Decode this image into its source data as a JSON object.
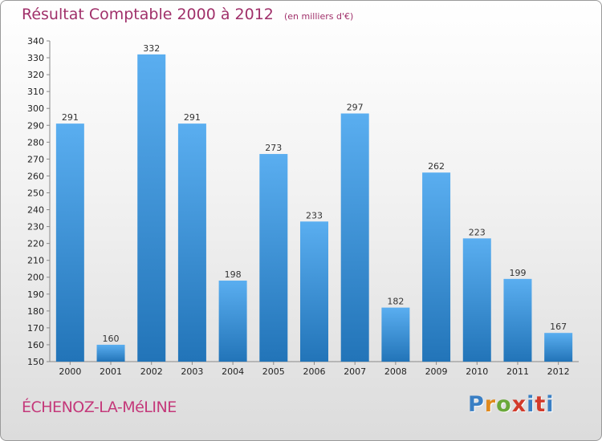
{
  "title": "Résultat Comptable 2000 à 2012",
  "subtitle": "(en milliers d'€)",
  "commune": "ÉCHENOZ-LA-MéLINE",
  "logo": {
    "letters": [
      "P",
      "r",
      "o",
      "x",
      "i",
      "t",
      "i"
    ],
    "colors": [
      "#3a7fc4",
      "#e08a1e",
      "#6aa83a",
      "#d23a2a",
      "#3a7fc4",
      "#d23a2a",
      "#3a7fc4"
    ]
  },
  "colors": {
    "bar_top": "#5aaef0",
    "bar_bottom": "#2274b8",
    "axis": "#888888",
    "grid": "#d0d0d0"
  },
  "chart_data": {
    "type": "bar",
    "title": "Résultat Comptable 2000 à 2012",
    "xlabel": "",
    "ylabel": "",
    "categories": [
      "2000",
      "2001",
      "2002",
      "2003",
      "2004",
      "2005",
      "2006",
      "2007",
      "2008",
      "2009",
      "2010",
      "2011",
      "2012"
    ],
    "values": [
      291,
      160,
      332,
      291,
      198,
      273,
      233,
      297,
      182,
      262,
      223,
      199,
      167
    ],
    "ylim": [
      150,
      340
    ],
    "ytick_step": 10,
    "grid": false
  }
}
